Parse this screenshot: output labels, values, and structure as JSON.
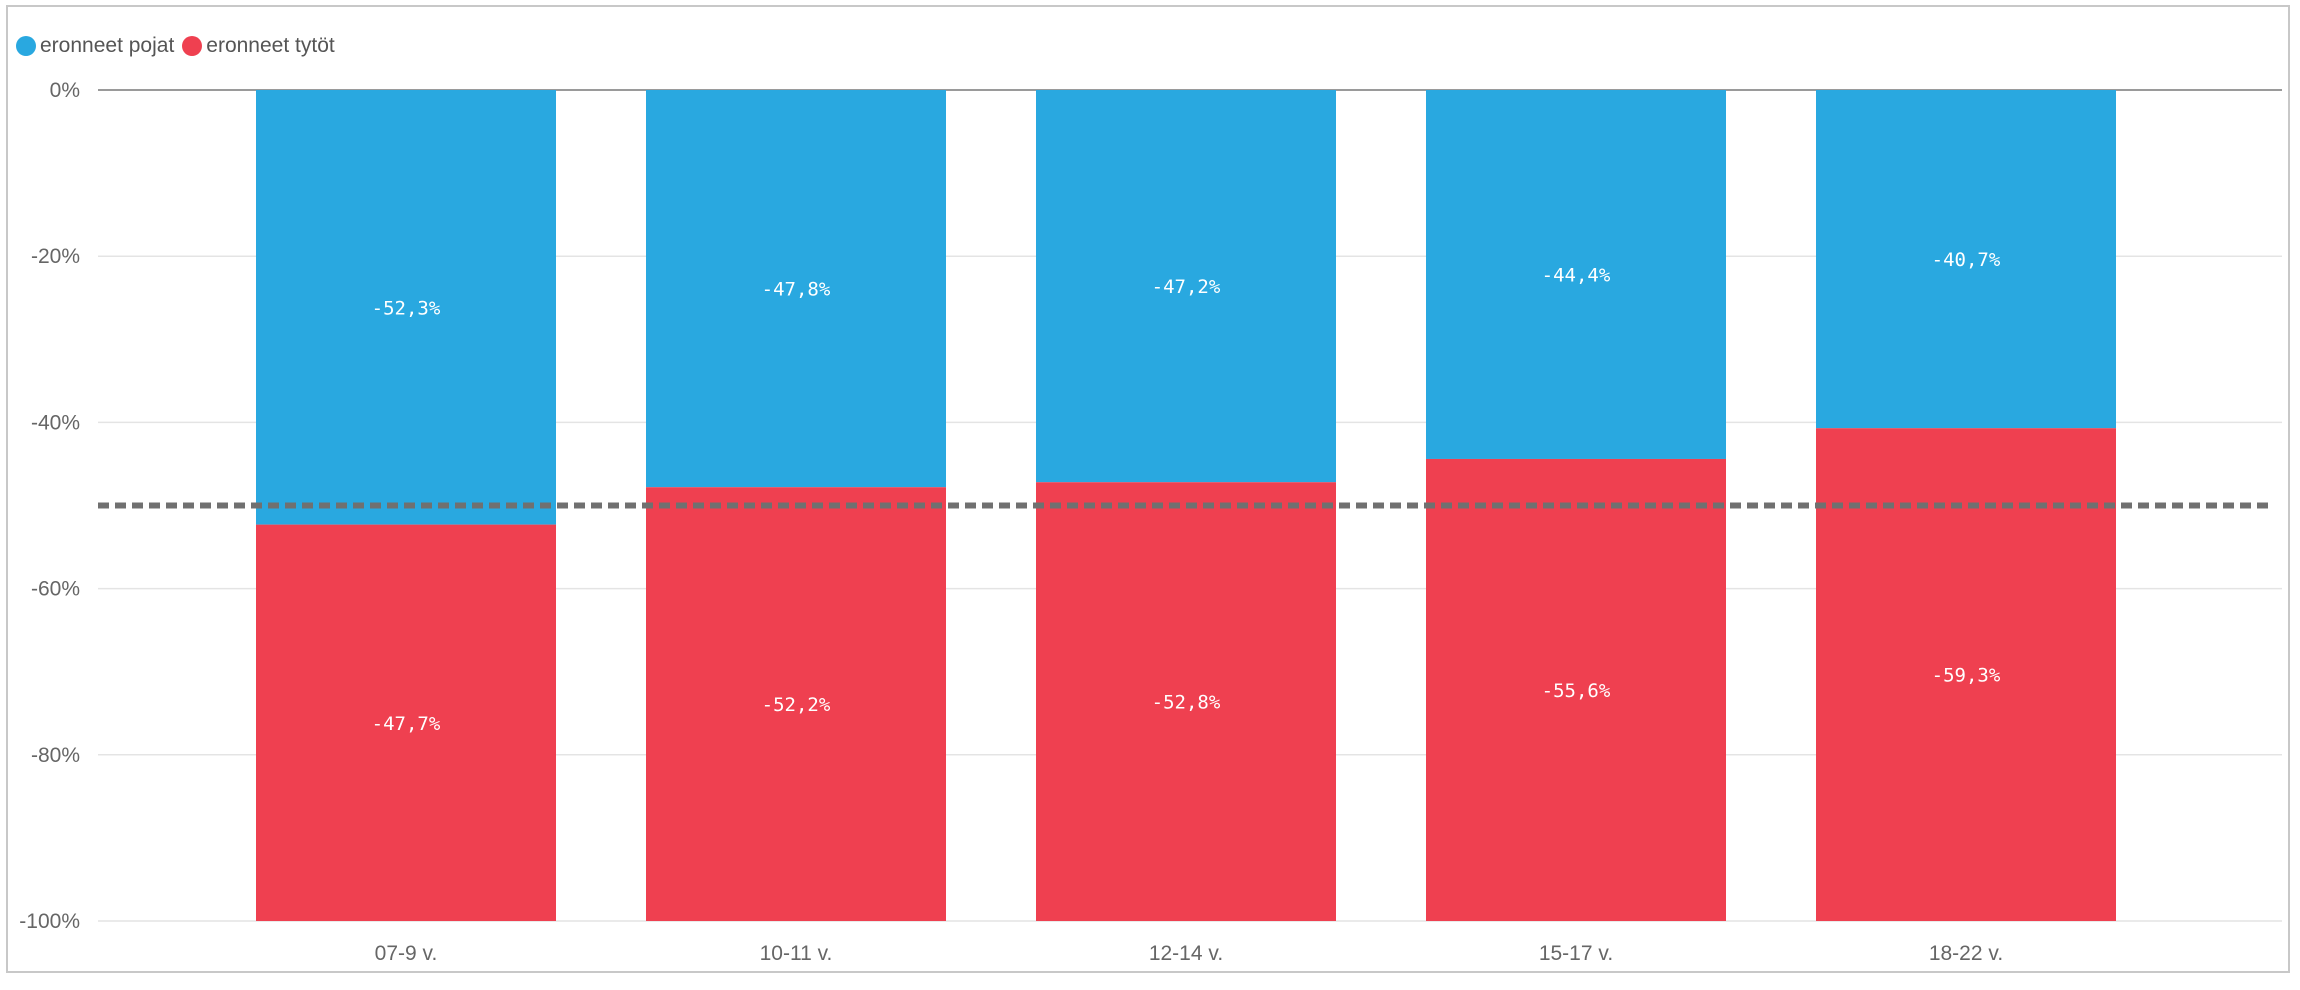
{
  "legend": {
    "items": [
      {
        "label": "eronneet pojat",
        "color": "#29a8e0"
      },
      {
        "label": "eronneet tytöt",
        "color": "#ef4050"
      }
    ]
  },
  "chart_data": {
    "type": "bar",
    "stacked": true,
    "categories": [
      "07-9 v.",
      "10-11 v.",
      "12-14 v.",
      "15-17 v.",
      "18-22 v."
    ],
    "series": [
      {
        "name": "eronneet pojat",
        "color": "#29a8e0",
        "values": [
          -52.3,
          -47.8,
          -47.2,
          -44.4,
          -40.7
        ],
        "labels": [
          "-52,3%",
          "-47,8%",
          "-47,2%",
          "-44,4%",
          "-40,7%"
        ]
      },
      {
        "name": "eronneet tytöt",
        "color": "#ef4050",
        "values": [
          -47.7,
          -52.2,
          -52.8,
          -55.6,
          -59.3
        ],
        "labels": [
          "-47,7%",
          "-52,2%",
          "-52,8%",
          "-55,6%",
          "-59,3%"
        ]
      }
    ],
    "ylim": [
      -100,
      0
    ],
    "yticks": [
      0,
      -20,
      -40,
      -60,
      -80,
      -100
    ],
    "ytick_labels": [
      "0%",
      "-20%",
      "-40%",
      "-60%",
      "-80%",
      "-100%"
    ],
    "reference_line": {
      "value": -50,
      "style": "dotted",
      "color": "#707070"
    },
    "grid": true,
    "legend_position": "top-left",
    "title": "",
    "xlabel": "",
    "ylabel": ""
  }
}
